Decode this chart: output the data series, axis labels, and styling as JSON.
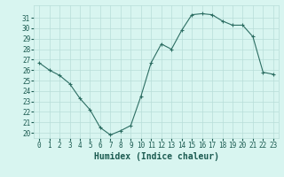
{
  "x": [
    0,
    1,
    2,
    3,
    4,
    5,
    6,
    7,
    8,
    9,
    10,
    11,
    12,
    13,
    14,
    15,
    16,
    17,
    18,
    19,
    20,
    21,
    22,
    23
  ],
  "y": [
    26.7,
    26.0,
    25.5,
    24.7,
    23.3,
    22.2,
    20.5,
    19.8,
    20.2,
    20.7,
    23.5,
    26.7,
    28.5,
    28.0,
    29.8,
    31.3,
    31.4,
    31.3,
    30.7,
    30.3,
    30.3,
    29.2,
    25.8,
    25.6
  ],
  "line_color": "#2d6e63",
  "marker": "+",
  "bg_color": "#d8f5f0",
  "grid_color": "#b8ddd8",
  "xlabel": "Humidex (Indice chaleur)",
  "ylim": [
    19.5,
    32.2
  ],
  "xlim": [
    -0.5,
    23.5
  ],
  "yticks": [
    20,
    21,
    22,
    23,
    24,
    25,
    26,
    27,
    28,
    29,
    30,
    31
  ],
  "xticks": [
    0,
    1,
    2,
    3,
    4,
    5,
    6,
    7,
    8,
    9,
    10,
    11,
    12,
    13,
    14,
    15,
    16,
    17,
    18,
    19,
    20,
    21,
    22,
    23
  ],
  "tick_fontsize": 5.5,
  "xlabel_fontsize": 7.0,
  "axes_color": "#1a5a50"
}
